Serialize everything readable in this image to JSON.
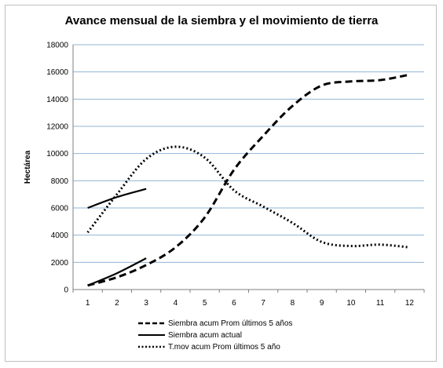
{
  "chart_data": {
    "type": "line",
    "title": "Avance mensual de la siembra y el movimiento de tierra",
    "ylabel": "Hectárea",
    "xlabel": "",
    "ylim": [
      0,
      18000
    ],
    "yticks": [
      0,
      2000,
      4000,
      6000,
      8000,
      10000,
      12000,
      14000,
      16000,
      18000
    ],
    "x": [
      1,
      2,
      3,
      4,
      5,
      6,
      7,
      8,
      9,
      10,
      11,
      12
    ],
    "grid": "horizontal",
    "legend_position": "bottom",
    "series": [
      {
        "name": "Siembra acum Prom últimos 5 años",
        "style": "dashed",
        "x": [
          1,
          2,
          3,
          4,
          5,
          6,
          7,
          8,
          9,
          10,
          11,
          12
        ],
        "values": [
          300,
          900,
          1800,
          3100,
          5300,
          8800,
          11300,
          13500,
          15000,
          15300,
          15400,
          15800
        ]
      },
      {
        "name": "Siembra acum actual",
        "style": "solid",
        "x": [
          1,
          2,
          3
        ],
        "values": [
          300,
          1200,
          2300
        ]
      },
      {
        "name": "",
        "style": "solid",
        "x": [
          1,
          2,
          3
        ],
        "values": [
          6000,
          6800,
          7400
        ]
      },
      {
        "name": "T.mov acum Prom últimos 5 año",
        "style": "dotted",
        "x": [
          1,
          2,
          3,
          4,
          5,
          6,
          7,
          8,
          9,
          10,
          11,
          12
        ],
        "values": [
          4200,
          7000,
          9600,
          10500,
          9700,
          7300,
          6100,
          4900,
          3500,
          3200,
          3300,
          3100
        ]
      }
    ]
  }
}
